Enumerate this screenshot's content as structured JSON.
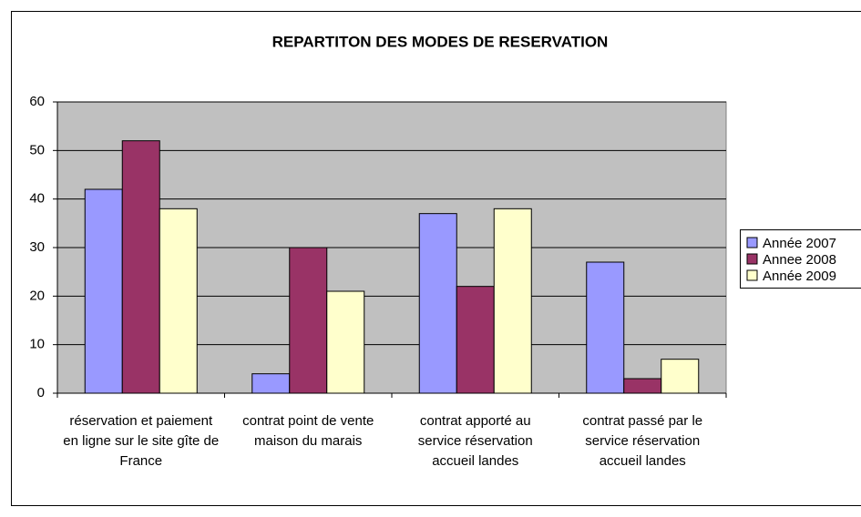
{
  "chart_data": {
    "type": "bar",
    "title": "REPARTITON DES MODES DE RESERVATION",
    "categories": [
      "réservation et paiement en ligne sur le site gîte de France",
      "contrat point de vente maison du marais",
      "contrat apporté au service réservation accueil landes",
      "contrat passé par le service réservation accueil landes"
    ],
    "series": [
      {
        "name": "Année 2007",
        "color": "#9999ff",
        "values": [
          42,
          4,
          37,
          27
        ]
      },
      {
        "name": "Annee 2008",
        "color": "#993366",
        "values": [
          52,
          30,
          22,
          3
        ]
      },
      {
        "name": "Année 2009",
        "color": "#ffffcc",
        "values": [
          38,
          21,
          38,
          7
        ]
      }
    ],
    "ylim": [
      0,
      60
    ],
    "yticks": [
      0,
      10,
      20,
      30,
      40,
      50,
      60
    ],
    "grid": true,
    "legend": "right"
  }
}
